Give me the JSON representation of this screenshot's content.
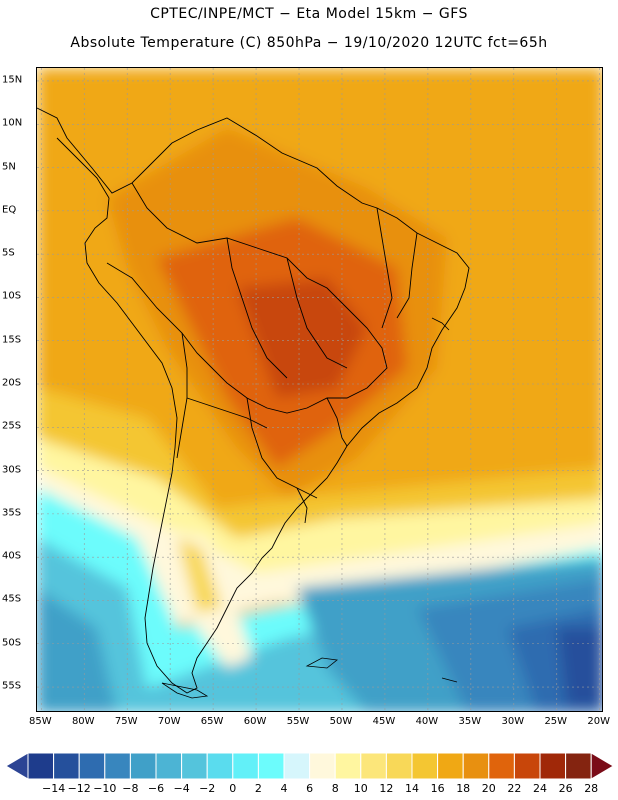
{
  "header": {
    "title_line1": "CPTEC/INPE/MCT −  Eta Model 15km − GFS",
    "title_line2": "Absolute Temperature (C) 850hPa − 19/10/2020 12UTC fct=65h"
  },
  "map": {
    "lat_labels": [
      "15N",
      "10N",
      "5N",
      "EQ",
      "5S",
      "10S",
      "15S",
      "20S",
      "25S",
      "30S",
      "35S",
      "40S",
      "45S",
      "50S",
      "55S"
    ],
    "lat_values": [
      15,
      10,
      5,
      0,
      -5,
      -10,
      -15,
      -20,
      -25,
      -30,
      -35,
      -40,
      -45,
      -50,
      -55
    ],
    "lon_labels": [
      "85W",
      "80W",
      "75W",
      "70W",
      "65W",
      "60W",
      "55W",
      "50W",
      "45W",
      "40W",
      "35W",
      "30W",
      "25W",
      "20W"
    ],
    "lon_values": [
      -85,
      -80,
      -75,
      -70,
      -65,
      -60,
      -55,
      -50,
      -45,
      -40,
      -35,
      -30,
      -25,
      -20
    ],
    "extent": {
      "lon_min": -85.5,
      "lon_max": -19.5,
      "lat_min": -58,
      "lat_max": 16.5
    }
  },
  "colorbar": {
    "labels": [
      "-14",
      "-12",
      "-10",
      "-8",
      "-6",
      "-4",
      "-2",
      "0",
      "2",
      "4",
      "6",
      "8",
      "10",
      "12",
      "14",
      "16",
      "18",
      "20",
      "22",
      "24",
      "26",
      "28"
    ],
    "colors": [
      "#1e3c8c",
      "#25509c",
      "#2e6cb0",
      "#3886be",
      "#40a0c8",
      "#4cb4d4",
      "#54c4dc",
      "#5adcee",
      "#62f0f8",
      "#6cfcfc",
      "#d6f6fc",
      "#fff8dc",
      "#fff6a0",
      "#fce67a",
      "#f8d858",
      "#f4c632",
      "#f0a814",
      "#e89010",
      "#e0640c",
      "#c8460a",
      "#a02808",
      "#842410"
    ],
    "under_color": "#2c4494",
    "over_color": "#7a0c18"
  }
}
